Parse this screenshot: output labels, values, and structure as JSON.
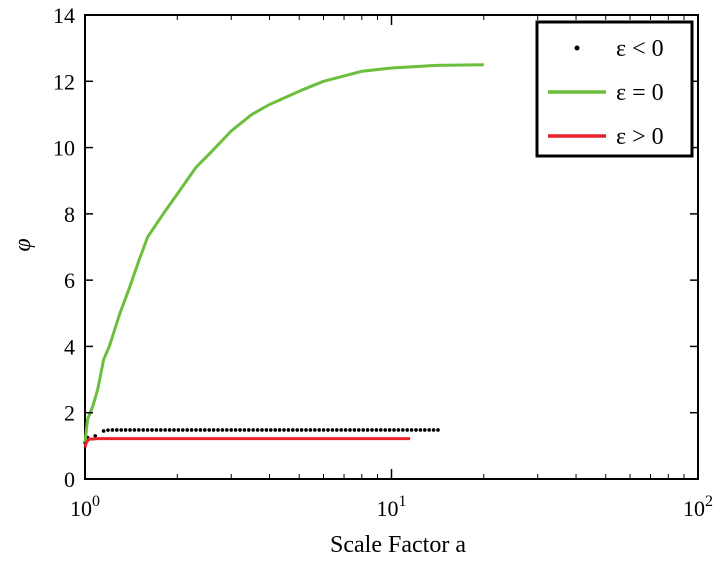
{
  "chart_data": {
    "type": "line",
    "title": "",
    "xlabel": "Scale Factor a",
    "ylabel": "φ",
    "xscale": "log",
    "xlim": [
      1,
      100
    ],
    "ylim": [
      0,
      14
    ],
    "x_ticks": [
      {
        "value": 1,
        "base": "10",
        "exp": "0"
      },
      {
        "value": 10,
        "base": "10",
        "exp": "1"
      },
      {
        "value": 100,
        "base": "10",
        "exp": "2"
      }
    ],
    "y_ticks": [
      "0",
      "2",
      "4",
      "6",
      "8",
      "10",
      "12",
      "14"
    ],
    "grid": false,
    "legend_position": "top-right",
    "series": [
      {
        "name": "ε < 0",
        "style": "dots",
        "color": "#000000",
        "points": [
          [
            1.0,
            1.1
          ],
          [
            1.02,
            1.25
          ],
          [
            1.08,
            1.3
          ],
          [
            1.15,
            1.45
          ],
          [
            1.2,
            1.48
          ],
          [
            1.5,
            1.48
          ],
          [
            2,
            1.48
          ],
          [
            3,
            1.48
          ],
          [
            5,
            1.48
          ],
          [
            8,
            1.48
          ],
          [
            12,
            1.48
          ],
          [
            14.5,
            1.48
          ]
        ]
      },
      {
        "name": "ε = 0",
        "style": "line",
        "color": "#6bbf3c",
        "points": [
          [
            1.0,
            1.1
          ],
          [
            1.02,
            1.8
          ],
          [
            1.06,
            2.2
          ],
          [
            1.1,
            2.7
          ],
          [
            1.15,
            3.6
          ],
          [
            1.2,
            4.0
          ],
          [
            1.3,
            5.0
          ],
          [
            1.4,
            5.8
          ],
          [
            1.5,
            6.6
          ],
          [
            1.6,
            7.3
          ],
          [
            1.8,
            8.0
          ],
          [
            2.0,
            8.6
          ],
          [
            2.3,
            9.4
          ],
          [
            2.6,
            9.9
          ],
          [
            3.0,
            10.5
          ],
          [
            3.5,
            11.0
          ],
          [
            4.0,
            11.3
          ],
          [
            5.0,
            11.7
          ],
          [
            6.0,
            12.0
          ],
          [
            8.0,
            12.3
          ],
          [
            10.0,
            12.4
          ],
          [
            14.0,
            12.48
          ],
          [
            20.0,
            12.5
          ]
        ]
      },
      {
        "name": "ε > 0",
        "style": "line",
        "color": "#e8222a",
        "points": [
          [
            1.0,
            0.95
          ],
          [
            1.01,
            1.1
          ],
          [
            1.03,
            1.2
          ],
          [
            1.1,
            1.22
          ],
          [
            2,
            1.22
          ],
          [
            5,
            1.22
          ],
          [
            11.5,
            1.22
          ]
        ]
      }
    ]
  }
}
